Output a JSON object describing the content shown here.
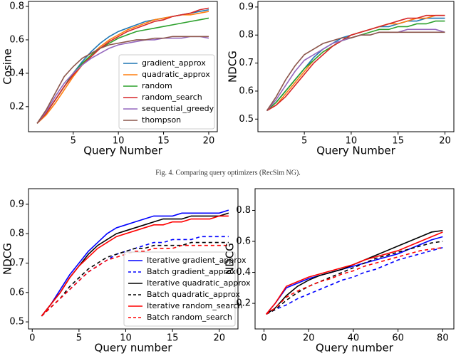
{
  "chart_data": [
    {
      "type": "line",
      "xlabel": "Query Number",
      "ylabel": "Cosine",
      "x": [
        1,
        2,
        3,
        4,
        5,
        6,
        7,
        8,
        9,
        10,
        11,
        12,
        13,
        14,
        15,
        16,
        17,
        18,
        19,
        20
      ],
      "xlim": [
        0.05,
        20.95
      ],
      "xticks": [
        5,
        10,
        15,
        20
      ],
      "ylim": [
        0.05,
        0.83
      ],
      "yticks": [
        0.2,
        0.4,
        0.6,
        0.8
      ],
      "legend": "lower right",
      "series": [
        {
          "name": "gradient_approx",
          "color": "#1f77b4",
          "values": [
            0.1,
            0.16,
            0.24,
            0.32,
            0.4,
            0.47,
            0.53,
            0.58,
            0.62,
            0.65,
            0.67,
            0.69,
            0.71,
            0.72,
            0.73,
            0.74,
            0.75,
            0.76,
            0.77,
            0.78
          ]
        },
        {
          "name": "quadratic_approx",
          "color": "#ff7f0e",
          "values": [
            0.1,
            0.15,
            0.22,
            0.3,
            0.38,
            0.45,
            0.51,
            0.56,
            0.6,
            0.63,
            0.66,
            0.68,
            0.7,
            0.72,
            0.73,
            0.74,
            0.75,
            0.75,
            0.76,
            0.77
          ]
        },
        {
          "name": "random",
          "color": "#2ca02c",
          "values": [
            0.1,
            0.16,
            0.24,
            0.32,
            0.4,
            0.46,
            0.51,
            0.55,
            0.58,
            0.61,
            0.63,
            0.65,
            0.66,
            0.67,
            0.68,
            0.69,
            0.7,
            0.71,
            0.72,
            0.73
          ]
        },
        {
          "name": "random_search",
          "color": "#d62728",
          "values": [
            0.1,
            0.16,
            0.24,
            0.32,
            0.39,
            0.45,
            0.5,
            0.55,
            0.59,
            0.62,
            0.65,
            0.67,
            0.69,
            0.71,
            0.72,
            0.74,
            0.75,
            0.76,
            0.78,
            0.79
          ]
        },
        {
          "name": "sequential_greedy",
          "color": "#9467bd",
          "values": [
            0.1,
            0.17,
            0.26,
            0.34,
            0.4,
            0.45,
            0.49,
            0.52,
            0.55,
            0.57,
            0.58,
            0.59,
            0.6,
            0.6,
            0.61,
            0.61,
            0.61,
            0.62,
            0.62,
            0.61
          ]
        },
        {
          "name": "thompson",
          "color": "#8c564b",
          "values": [
            0.1,
            0.18,
            0.28,
            0.38,
            0.44,
            0.49,
            0.52,
            0.55,
            0.57,
            0.58,
            0.59,
            0.6,
            0.6,
            0.61,
            0.61,
            0.62,
            0.62,
            0.62,
            0.62,
            0.62
          ]
        }
      ]
    },
    {
      "type": "line",
      "xlabel": "Query Number",
      "ylabel": "NDCG",
      "x": [
        1,
        2,
        3,
        4,
        5,
        6,
        7,
        8,
        9,
        10,
        11,
        12,
        13,
        14,
        15,
        16,
        17,
        18,
        19,
        20
      ],
      "xlim": [
        0.05,
        20.95
      ],
      "xticks": [
        5,
        10,
        15,
        20
      ],
      "ylim": [
        0.455,
        0.92
      ],
      "yticks": [
        0.5,
        0.6,
        0.7,
        0.8,
        0.9
      ],
      "series": [
        {
          "color": "#1f77b4",
          "values": [
            0.53,
            0.56,
            0.6,
            0.64,
            0.68,
            0.72,
            0.75,
            0.77,
            0.79,
            0.8,
            0.81,
            0.82,
            0.83,
            0.83,
            0.84,
            0.85,
            0.85,
            0.86,
            0.86,
            0.86
          ]
        },
        {
          "color": "#ff7f0e",
          "values": [
            0.53,
            0.55,
            0.59,
            0.63,
            0.67,
            0.71,
            0.74,
            0.76,
            0.78,
            0.8,
            0.81,
            0.82,
            0.83,
            0.84,
            0.84,
            0.85,
            0.86,
            0.86,
            0.87,
            0.87
          ]
        },
        {
          "color": "#2ca02c",
          "values": [
            0.53,
            0.56,
            0.6,
            0.64,
            0.68,
            0.71,
            0.74,
            0.76,
            0.78,
            0.79,
            0.8,
            0.81,
            0.82,
            0.82,
            0.83,
            0.83,
            0.84,
            0.84,
            0.85,
            0.85
          ]
        },
        {
          "color": "#d62728",
          "values": [
            0.53,
            0.55,
            0.58,
            0.62,
            0.66,
            0.7,
            0.73,
            0.76,
            0.78,
            0.8,
            0.81,
            0.82,
            0.83,
            0.84,
            0.85,
            0.86,
            0.86,
            0.87,
            0.87,
            0.87
          ]
        },
        {
          "color": "#9467bd",
          "values": [
            0.53,
            0.57,
            0.62,
            0.67,
            0.71,
            0.73,
            0.75,
            0.77,
            0.78,
            0.79,
            0.8,
            0.8,
            0.81,
            0.81,
            0.81,
            0.82,
            0.82,
            0.82,
            0.82,
            0.81
          ]
        },
        {
          "color": "#8c564b",
          "values": [
            0.53,
            0.58,
            0.64,
            0.69,
            0.73,
            0.75,
            0.77,
            0.78,
            0.79,
            0.79,
            0.8,
            0.8,
            0.81,
            0.81,
            0.81,
            0.81,
            0.81,
            0.81,
            0.81,
            0.81
          ]
        }
      ]
    },
    {
      "type": "line",
      "xlabel": "Query number",
      "ylabel": "NDCG",
      "x": [
        1,
        2,
        3,
        4,
        5,
        6,
        7,
        8,
        9,
        10,
        11,
        12,
        13,
        14,
        15,
        16,
        17,
        18,
        19,
        20,
        21
      ],
      "xlim": [
        -0.4,
        22
      ],
      "xticks": [
        0,
        5,
        10,
        15,
        20
      ],
      "ylim": [
        0.476,
        0.953
      ],
      "yticks": [
        0.5,
        0.6,
        0.7,
        0.8,
        0.9
      ],
      "legend": "lower right",
      "series": [
        {
          "name": "Iterative gradient_approx",
          "color": "#0000ff",
          "dashed": false,
          "values": [
            0.52,
            0.56,
            0.61,
            0.66,
            0.7,
            0.74,
            0.77,
            0.8,
            0.82,
            0.83,
            0.84,
            0.85,
            0.86,
            0.86,
            0.86,
            0.87,
            0.87,
            0.87,
            0.87,
            0.87,
            0.88
          ]
        },
        {
          "name": "Batch gradient_approx",
          "color": "#0000ff",
          "dashed": true,
          "values": [
            0.52,
            0.55,
            0.58,
            0.61,
            0.64,
            0.67,
            0.69,
            0.71,
            0.73,
            0.74,
            0.75,
            0.76,
            0.77,
            0.77,
            0.78,
            0.78,
            0.78,
            0.79,
            0.79,
            0.79,
            0.79
          ]
        },
        {
          "name": "Iterative quadratic_approx",
          "color": "#000000",
          "dashed": false,
          "values": [
            0.52,
            0.56,
            0.6,
            0.65,
            0.69,
            0.73,
            0.76,
            0.78,
            0.8,
            0.81,
            0.82,
            0.83,
            0.84,
            0.85,
            0.85,
            0.85,
            0.86,
            0.86,
            0.86,
            0.86,
            0.87
          ]
        },
        {
          "name": "Batch quadratic_approx",
          "color": "#000000",
          "dashed": true,
          "values": [
            0.52,
            0.55,
            0.58,
            0.62,
            0.65,
            0.68,
            0.7,
            0.72,
            0.73,
            0.74,
            0.75,
            0.75,
            0.76,
            0.76,
            0.76,
            0.76,
            0.77,
            0.77,
            0.77,
            0.77,
            0.77
          ]
        },
        {
          "name": "Iterative random_search",
          "color": "#ff0000",
          "dashed": false,
          "values": [
            0.52,
            0.56,
            0.6,
            0.65,
            0.69,
            0.72,
            0.75,
            0.77,
            0.79,
            0.8,
            0.81,
            0.82,
            0.83,
            0.83,
            0.84,
            0.84,
            0.85,
            0.85,
            0.85,
            0.86,
            0.86
          ]
        },
        {
          "name": "Batch random_search",
          "color": "#ff0000",
          "dashed": true,
          "values": [
            0.52,
            0.55,
            0.58,
            0.61,
            0.64,
            0.67,
            0.69,
            0.71,
            0.72,
            0.73,
            0.74,
            0.74,
            0.75,
            0.75,
            0.75,
            0.76,
            0.76,
            0.76,
            0.76,
            0.76,
            0.76
          ]
        }
      ]
    },
    {
      "type": "line",
      "xlabel": "Query number",
      "ylabel": "NDCG",
      "x": [
        1,
        5,
        10,
        15,
        20,
        25,
        30,
        35,
        40,
        45,
        50,
        55,
        60,
        65,
        70,
        75,
        80
      ],
      "xlim": [
        -4,
        85
      ],
      "xticks": [
        0,
        20,
        40,
        60,
        80
      ],
      "ylim": [
        0.035,
        0.94
      ],
      "yticks": [
        0.2,
        0.4,
        0.6,
        0.8
      ],
      "series": [
        {
          "color": "#0000ff",
          "dashed": false,
          "values": [
            0.13,
            0.2,
            0.3,
            0.33,
            0.36,
            0.38,
            0.4,
            0.42,
            0.44,
            0.46,
            0.48,
            0.5,
            0.52,
            0.55,
            0.58,
            0.61,
            0.63
          ]
        },
        {
          "color": "#0000ff",
          "dashed": true,
          "values": [
            0.13,
            0.16,
            0.19,
            0.23,
            0.26,
            0.29,
            0.32,
            0.35,
            0.37,
            0.4,
            0.42,
            0.45,
            0.48,
            0.5,
            0.52,
            0.54,
            0.56
          ]
        },
        {
          "color": "#000000",
          "dashed": false,
          "values": [
            0.13,
            0.17,
            0.25,
            0.31,
            0.35,
            0.38,
            0.4,
            0.42,
            0.45,
            0.48,
            0.51,
            0.54,
            0.57,
            0.6,
            0.63,
            0.66,
            0.67
          ]
        },
        {
          "color": "#000000",
          "dashed": true,
          "values": [
            0.13,
            0.16,
            0.22,
            0.27,
            0.31,
            0.34,
            0.37,
            0.4,
            0.43,
            0.46,
            0.49,
            0.51,
            0.53,
            0.55,
            0.57,
            0.59,
            0.6
          ]
        },
        {
          "color": "#ff0000",
          "dashed": false,
          "values": [
            0.13,
            0.2,
            0.31,
            0.34,
            0.37,
            0.39,
            0.41,
            0.43,
            0.45,
            0.48,
            0.5,
            0.52,
            0.54,
            0.57,
            0.6,
            0.63,
            0.66
          ]
        },
        {
          "color": "#ff0000",
          "dashed": true,
          "values": [
            0.13,
            0.17,
            0.24,
            0.28,
            0.31,
            0.34,
            0.36,
            0.39,
            0.41,
            0.44,
            0.46,
            0.48,
            0.5,
            0.52,
            0.54,
            0.55,
            0.56
          ]
        }
      ]
    }
  ],
  "caption": "Fig. 4.  Comparing query optimizers (RecSim NG)."
}
